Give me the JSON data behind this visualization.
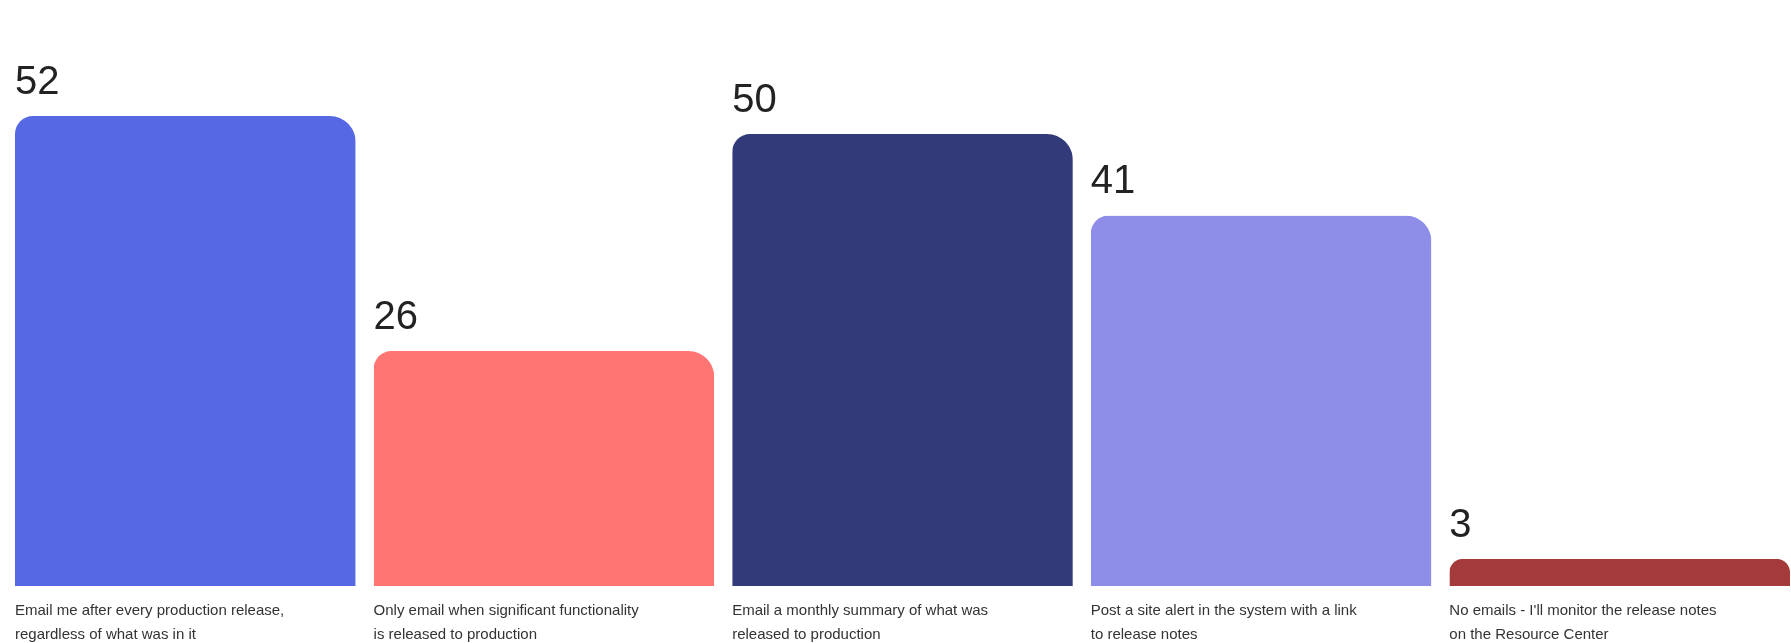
{
  "chart_data": {
    "type": "bar",
    "categories": [
      "Email me after every production release, regardless of what was in it",
      "Only email when significant functionality is released to production",
      "Email a monthly summary of what was released to production",
      "Post a site alert in the system with a link to release notes",
      "No emails - I'll monitor the release notes on the Resource Center"
    ],
    "values": [
      52,
      26,
      50,
      41,
      3
    ],
    "colors": [
      "#5668e4",
      "#ff7573",
      "#323a7a",
      "#8e8ee8",
      "#a53a3a"
    ],
    "data_labels": true
  }
}
